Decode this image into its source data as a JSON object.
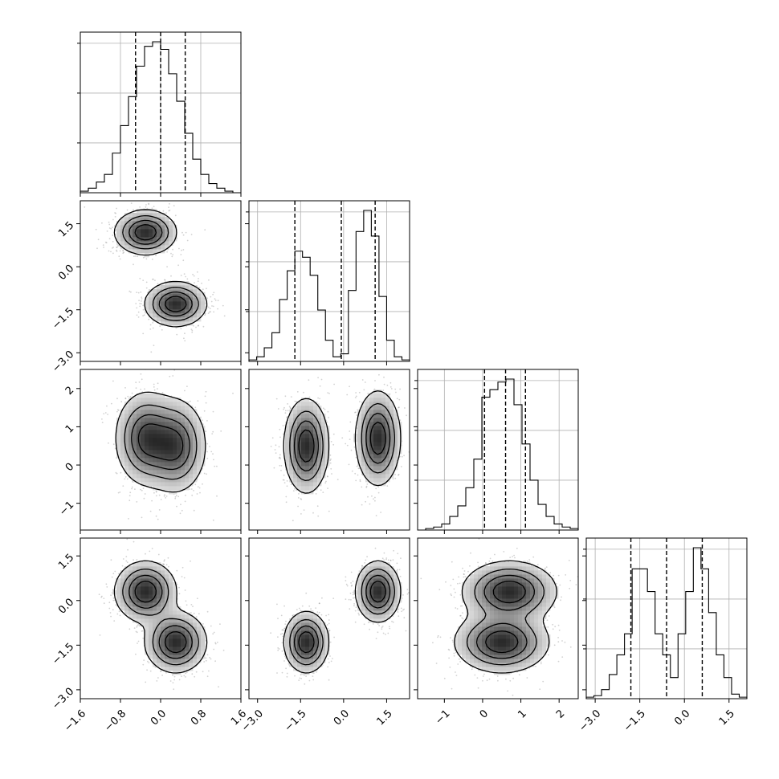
{
  "chart_data": {
    "type": "corner",
    "grid": true,
    "variables": [
      {
        "index": 0,
        "quantiles": [
          -0.5,
          0.0,
          0.49
        ],
        "hist_range": [
          -1.6,
          1.6
        ],
        "hist_counts": [
          0.01,
          0.03,
          0.07,
          0.12,
          0.26,
          0.44,
          0.63,
          0.83,
          0.96,
          0.99,
          0.94,
          0.78,
          0.6,
          0.39,
          0.22,
          0.12,
          0.06,
          0.03,
          0.01,
          0.0
        ],
        "ticks": [
          "−1.6",
          "−0.8",
          "0.0",
          "0.8",
          "1.6"
        ],
        "tick_values": [
          -1.6,
          -0.8,
          0.0,
          0.8,
          1.6
        ]
      },
      {
        "index": 1,
        "quantiles": [
          -1.7,
          -0.08,
          1.1
        ],
        "hist_range": [
          -3.3,
          2.3
        ],
        "hist_counts": [
          0.01,
          0.03,
          0.09,
          0.19,
          0.41,
          0.6,
          0.73,
          0.69,
          0.57,
          0.34,
          0.14,
          0.03,
          0.05,
          0.47,
          0.86,
          1.0,
          0.83,
          0.43,
          0.14,
          0.03,
          0.01
        ],
        "ticks": [
          "−3.0",
          "−1.5",
          "0.0",
          "1.5"
        ],
        "tick_values": [
          -3.0,
          -1.5,
          0.0,
          1.5
        ]
      },
      {
        "index": 2,
        "quantiles": [
          0.05,
          0.6,
          1.12
        ],
        "hist_range": [
          -1.7,
          2.5
        ],
        "hist_counts": [
          0.0,
          0.01,
          0.02,
          0.04,
          0.09,
          0.16,
          0.28,
          0.47,
          0.88,
          0.93,
          0.98,
          1.0,
          0.83,
          0.57,
          0.33,
          0.17,
          0.09,
          0.04,
          0.02,
          0.01
        ],
        "ticks": [
          "−1",
          "0",
          "1",
          "2"
        ],
        "tick_values": [
          -1,
          0,
          1,
          2
        ]
      },
      {
        "index": 3,
        "quantiles": [
          -1.8,
          -0.6,
          0.6
        ],
        "hist_range": [
          -3.3,
          2.1
        ],
        "hist_counts": [
          0.01,
          0.02,
          0.06,
          0.16,
          0.29,
          0.43,
          0.86,
          0.86,
          0.71,
          0.43,
          0.29,
          0.14,
          0.43,
          0.71,
          1.0,
          0.86,
          0.57,
          0.29,
          0.14,
          0.03,
          0.01
        ],
        "ticks": [
          "−3.0",
          "−1.5",
          "0.0",
          "1.5"
        ],
        "tick_values": [
          -3.0,
          -1.5,
          0.0,
          1.5
        ]
      }
    ],
    "mixture_components": [
      {
        "weight": 0.5,
        "mean": [
          -0.3,
          1.2,
          0.7,
          0.3
        ],
        "sd": [
          0.3,
          0.38,
          0.6,
          0.5
        ]
      },
      {
        "weight": 0.5,
        "mean": [
          0.3,
          -1.3,
          0.5,
          -1.4
        ],
        "sd": [
          0.3,
          0.38,
          0.6,
          0.5
        ]
      }
    ],
    "row_ylims": [
      null,
      [
        -3.3,
        2.3
      ],
      [
        -1.7,
        2.5
      ],
      [
        -3.3,
        2.1
      ]
    ],
    "row_yticks": [
      [],
      [
        "1.5",
        "0.0",
        "−1.5",
        "−3.0"
      ],
      [
        "2",
        "1",
        "0",
        "−1"
      ],
      [
        "1.5",
        "0.0",
        "−1.5",
        "−3.0"
      ]
    ],
    "row_ytick_values": [
      [],
      [
        1.5,
        0.0,
        -1.5,
        -3.0
      ],
      [
        2,
        1,
        0,
        -1
      ],
      [
        1.5,
        0.0,
        -1.5,
        -3.0
      ]
    ],
    "contour_levels": 4,
    "colors": {
      "line": "#000000",
      "grid": "#b0b0b0",
      "points": "#7f7f7f",
      "density_dark": "#000000",
      "density_light": "#ffffff"
    }
  }
}
